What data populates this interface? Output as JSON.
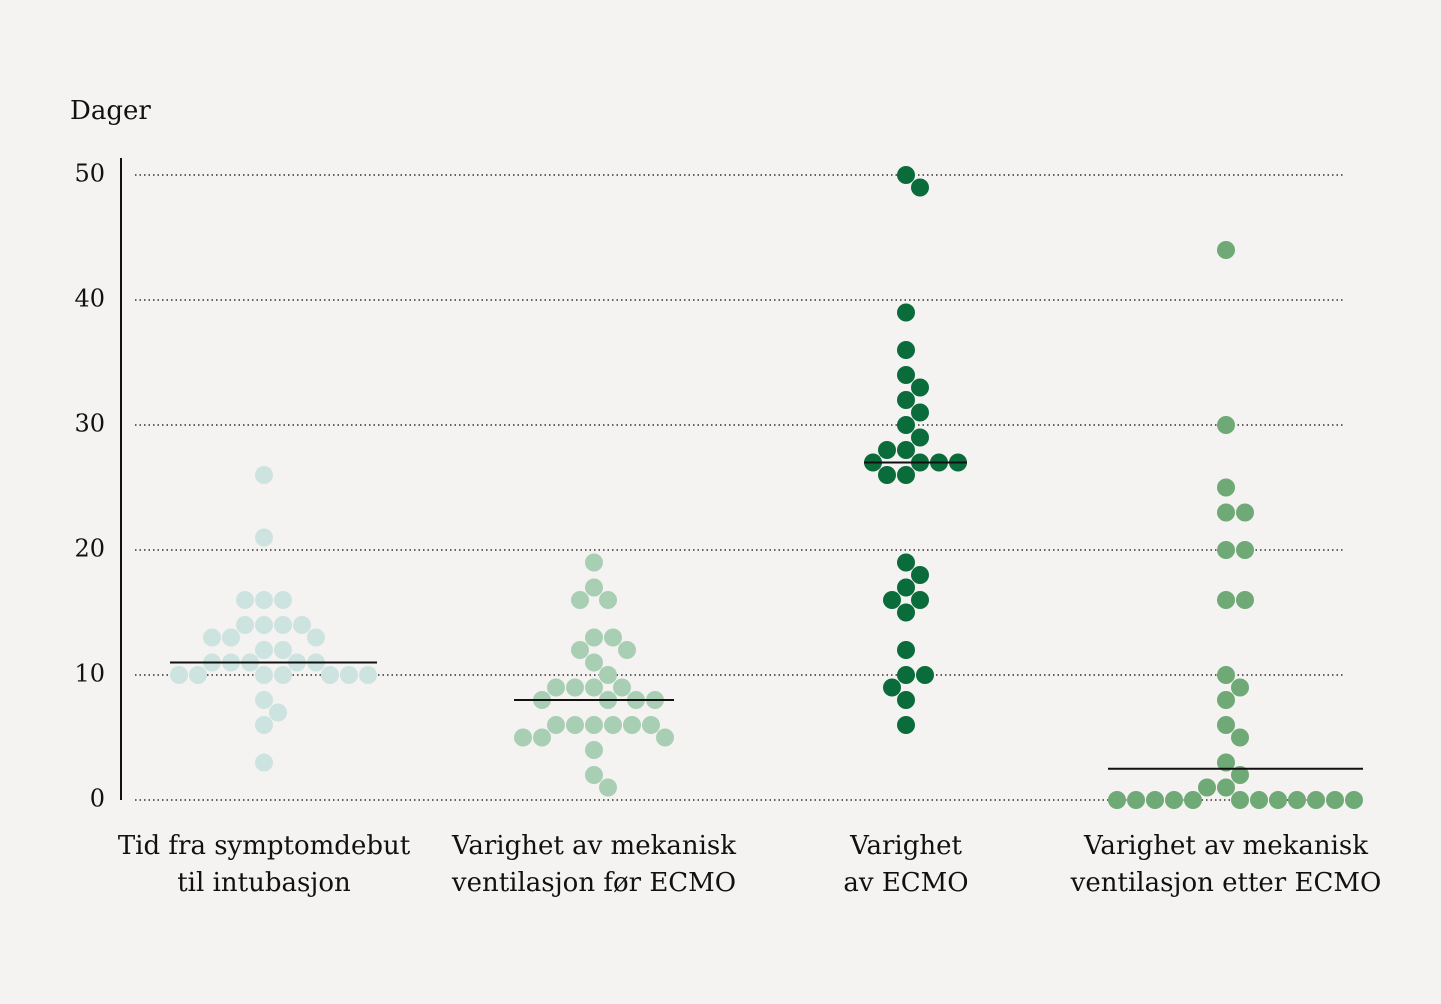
{
  "chart_data": {
    "type": "beeswarm",
    "y_label": "Dager",
    "ylim": [
      0,
      50
    ],
    "yticks": [
      0,
      10,
      20,
      30,
      40,
      50
    ],
    "grid": true,
    "groups": [
      {
        "label": [
          "Tid fra symptomdebut",
          "til intubasjon"
        ],
        "color": "#cde3df",
        "median": 11,
        "values": [
          26,
          21,
          16,
          16,
          16,
          14,
          14,
          14,
          14,
          13,
          13,
          13,
          12,
          12,
          11,
          11,
          11,
          11,
          11,
          10,
          10,
          10,
          10,
          10,
          10,
          10,
          8,
          7,
          6,
          3
        ]
      },
      {
        "label": [
          "Varighet av mekanisk",
          "ventilasjon før ECMO"
        ],
        "color": "#a8cfb4",
        "median": 8,
        "values": [
          19,
          17,
          16,
          16,
          13,
          13,
          12,
          12,
          11,
          10,
          9,
          9,
          9,
          9,
          8,
          8,
          8,
          8,
          6,
          6,
          6,
          6,
          6,
          6,
          5,
          5,
          5,
          4,
          2,
          1
        ]
      },
      {
        "label": [
          "Varighet",
          "av ECMO"
        ],
        "color": "#0a6b3b",
        "median": 27,
        "values": [
          50,
          49,
          39,
          36,
          34,
          33,
          32,
          31,
          30,
          29,
          28,
          28,
          27,
          27,
          27,
          27,
          26,
          26,
          19,
          18,
          17,
          16,
          16,
          15,
          12,
          10,
          10,
          9,
          8,
          6
        ]
      },
      {
        "label": [
          "Varighet av mekanisk",
          "ventilasjon etter ECMO"
        ],
        "color": "#6ea976",
        "median": 2.5,
        "values": [
          44,
          30,
          25,
          23,
          23,
          20,
          20,
          16,
          16,
          10,
          9,
          8,
          6,
          5,
          3,
          2,
          1,
          1,
          0,
          0,
          0,
          0,
          0,
          0,
          0,
          0,
          0,
          0,
          0,
          0
        ]
      }
    ]
  }
}
